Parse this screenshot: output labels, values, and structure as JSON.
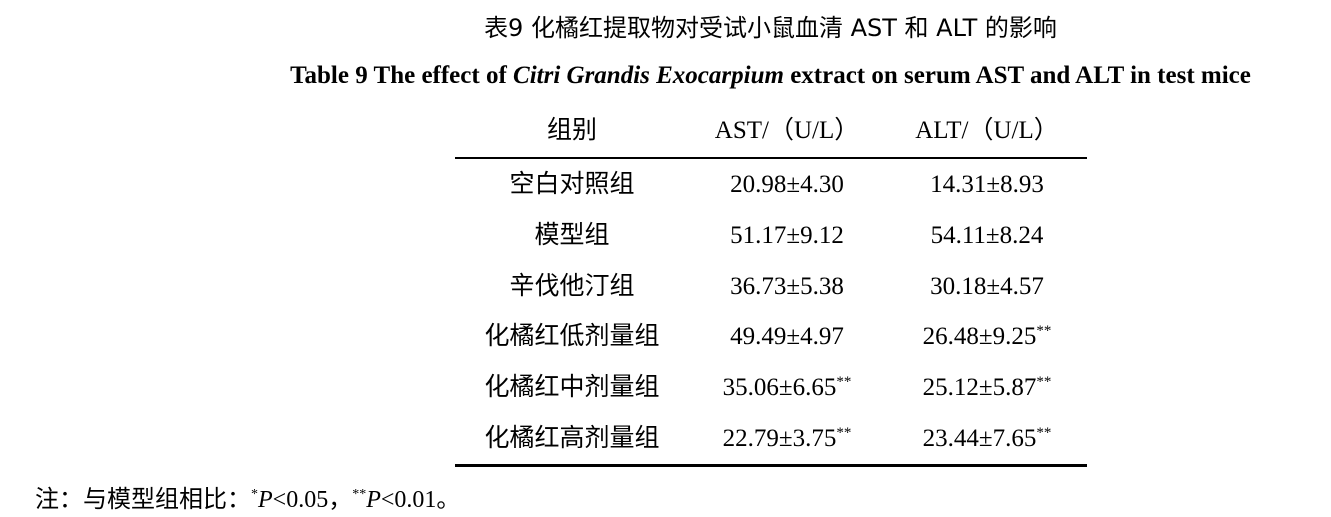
{
  "title_cn": "表9  化橘红提取物对受试小鼠血清 AST 和 ALT 的影响",
  "title_en": [
    {
      "text": "Table 9 The effect of "
    },
    {
      "text": "Citri Grandis Exocarpium",
      "italic": true
    },
    {
      "text": " extract on serum AST and ALT in test mice"
    }
  ],
  "table": {
    "header": [
      "组别",
      "AST/（U/L）",
      "ALT/（U/L）"
    ],
    "rows": [
      [
        {
          "text": "空白对照组"
        },
        {
          "text": "20.98±4.30"
        },
        {
          "text": "14.31±8.93"
        }
      ],
      [
        {
          "text": "模型组"
        },
        {
          "text": "51.17±9.12"
        },
        {
          "text": "54.11±8.24"
        }
      ],
      [
        {
          "text": "辛伐他汀组"
        },
        {
          "text": "36.73±5.38"
        },
        {
          "text": "30.18±4.57"
        }
      ],
      [
        {
          "text": "化橘红低剂量组"
        },
        {
          "text": "49.49±4.97"
        },
        {
          "text": "26.48±9.25",
          "sup": "**"
        }
      ],
      [
        {
          "text": "化橘红中剂量组"
        },
        {
          "text": "35.06±6.65",
          "sup": "**"
        },
        {
          "text": "25.12±5.87",
          "sup": "**"
        }
      ],
      [
        {
          "text": "化橘红高剂量组"
        },
        {
          "text": "22.79±3.75",
          "sup": "**"
        },
        {
          "text": "23.44±7.65",
          "sup": "**"
        }
      ]
    ]
  },
  "note": [
    {
      "text": "注：与模型组相比："
    },
    {
      "text": "*",
      "sup": true
    },
    {
      "text": "P",
      "italic": true
    },
    {
      "text": "<0.05，"
    },
    {
      "text": "**",
      "sup": true
    },
    {
      "text": "P",
      "italic": true
    },
    {
      "text": "<0.01。"
    }
  ]
}
